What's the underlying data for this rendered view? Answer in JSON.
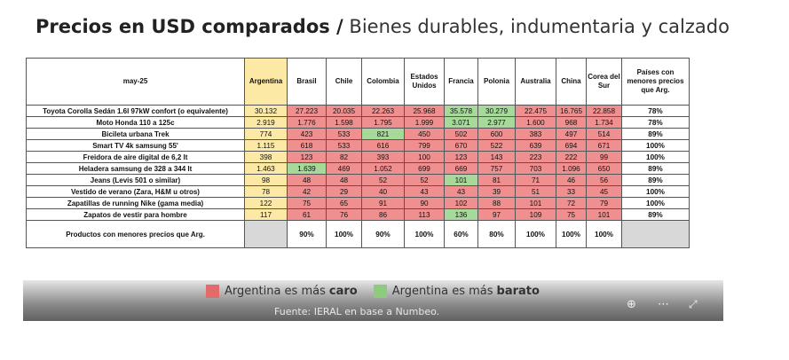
{
  "title": {
    "bold": "Precios en USD comparados /",
    "rest": "Bienes durables, indumentaria y calzado"
  },
  "chart_data": {
    "type": "table",
    "corner_label": "may-25",
    "columns": [
      "Argentina",
      "Brasil",
      "Chile",
      "Colombia",
      "Estados Unidos",
      "Francia",
      "Polonia",
      "Australia",
      "China",
      "Corea del Sur"
    ],
    "last_column": "Países con menores precios que Arg.",
    "rows": [
      {
        "product": "Toyota Corolla Sedán 1.6l 97kW confort (o equivalente)",
        "values": [
          "30.132",
          "27.223",
          "20.035",
          "22.263",
          "25.968",
          "35.578",
          "30.279",
          "22.475",
          "16.765",
          "22.858"
        ],
        "share": "78%",
        "colors": [
          "arg",
          "red",
          "red",
          "red",
          "red",
          "green",
          "green",
          "red",
          "red",
          "red"
        ]
      },
      {
        "product": "Moto Honda 110 a 125c",
        "values": [
          "2.919",
          "1.776",
          "1.598",
          "1.795",
          "1.999",
          "3.071",
          "2.977",
          "1.600",
          "968",
          "1.734"
        ],
        "share": "78%",
        "colors": [
          "arg",
          "red",
          "red",
          "red",
          "red",
          "green",
          "green",
          "red",
          "red",
          "red"
        ]
      },
      {
        "product": "Bicileta urbana Trek",
        "values": [
          "774",
          "423",
          "533",
          "821",
          "450",
          "502",
          "600",
          "383",
          "497",
          "514"
        ],
        "share": "89%",
        "colors": [
          "arg",
          "red",
          "red",
          "green",
          "red",
          "red",
          "red",
          "red",
          "red",
          "red"
        ]
      },
      {
        "product": "Smart TV 4k samsung 55'",
        "values": [
          "1.115",
          "618",
          "533",
          "616",
          "799",
          "670",
          "522",
          "639",
          "694",
          "671"
        ],
        "share": "100%",
        "colors": [
          "arg",
          "red",
          "red",
          "red",
          "red",
          "red",
          "red",
          "red",
          "red",
          "red"
        ]
      },
      {
        "product": "Freidora de aire digital de 6,2 lt",
        "values": [
          "398",
          "123",
          "82",
          "393",
          "100",
          "123",
          "143",
          "223",
          "222",
          "99"
        ],
        "share": "100%",
        "colors": [
          "arg",
          "red",
          "red",
          "red",
          "red",
          "red",
          "red",
          "red",
          "red",
          "red"
        ]
      },
      {
        "product": "Heladera samsung de 328 a 344 lt",
        "values": [
          "1.463",
          "1.639",
          "469",
          "1.052",
          "699",
          "669",
          "757",
          "703",
          "1.096",
          "650"
        ],
        "share": "89%",
        "colors": [
          "arg",
          "green",
          "red",
          "red",
          "red",
          "red",
          "red",
          "red",
          "red",
          "red"
        ]
      },
      {
        "product": "Jeans (Levis 501 o similar)",
        "values": [
          "98",
          "48",
          "48",
          "52",
          "52",
          "101",
          "81",
          "71",
          "46",
          "56"
        ],
        "share": "89%",
        "colors": [
          "arg",
          "red",
          "red",
          "red",
          "red",
          "green",
          "red",
          "red",
          "red",
          "red"
        ]
      },
      {
        "product": "Vestido de verano (Zara, H&M u otros)",
        "values": [
          "78",
          "42",
          "29",
          "40",
          "43",
          "43",
          "39",
          "51",
          "33",
          "45"
        ],
        "share": "100%",
        "colors": [
          "arg",
          "red",
          "red",
          "red",
          "red",
          "red",
          "red",
          "red",
          "red",
          "red"
        ]
      },
      {
        "product": "Zapatillas de running Nike (gama media)",
        "values": [
          "122",
          "75",
          "65",
          "91",
          "90",
          "102",
          "88",
          "101",
          "72",
          "79"
        ],
        "share": "100%",
        "colors": [
          "arg",
          "red",
          "red",
          "red",
          "red",
          "red",
          "red",
          "red",
          "red",
          "red"
        ]
      },
      {
        "product": "Zapatos de vestir para hombre",
        "values": [
          "117",
          "61",
          "76",
          "86",
          "113",
          "136",
          "97",
          "109",
          "75",
          "101"
        ],
        "share": "89%",
        "colors": [
          "arg",
          "red",
          "red",
          "red",
          "red",
          "green",
          "red",
          "red",
          "red",
          "red"
        ]
      }
    ],
    "summary": {
      "label": "Productos con menores precios que Arg.",
      "values": [
        "",
        "90%",
        "100%",
        "90%",
        "100%",
        "60%",
        "80%",
        "100%",
        "100%",
        "100%"
      ]
    },
    "colors": {
      "argentina": "#fde9a6",
      "caro": "#f08f8f",
      "barato": "#a6d99a"
    }
  },
  "legend": {
    "caro_text": "Argentina es más",
    "caro_bold": "caro",
    "barato_text": "Argentina es más",
    "barato_bold": "barato"
  },
  "source": "Fuente: IERAL en base a Numbeo.",
  "controls": {
    "zoom": "zoom-icon",
    "more": "more-icon",
    "expand": "expand-icon"
  }
}
